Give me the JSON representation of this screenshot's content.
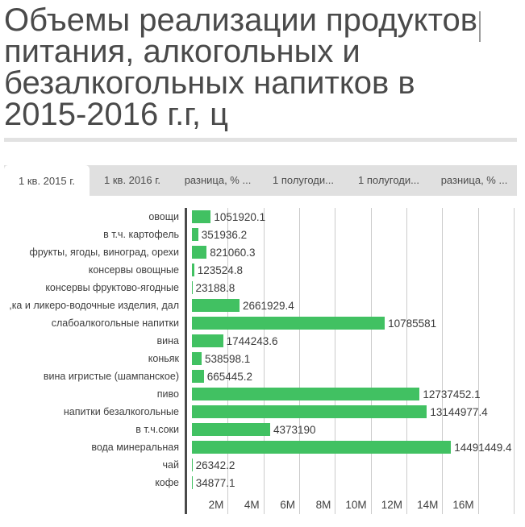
{
  "page": {
    "title": "Объемы реализации продуктов питания, алкогольных и безалкогольных напитков в 2015-2016 г.г, ц"
  },
  "tabs": [
    {
      "label": "1 кв. 2015 г.",
      "active": true
    },
    {
      "label": "1 кв. 2016 г.",
      "active": false
    },
    {
      "label": "разница, % ...",
      "active": false
    },
    {
      "label": "1 полугоди...",
      "active": false
    },
    {
      "label": "1 полугоди...",
      "active": false
    },
    {
      "label": "разница, % ...",
      "active": false
    }
  ],
  "chart_data": {
    "type": "bar",
    "orientation": "horizontal",
    "title": "Объемы реализации продуктов питания, алкогольных и безалкогольных напитков в 2015-2016 г.г, ц",
    "categories": [
      "овощи",
      "в т.ч. картофель",
      "фрукты, ягоды, виноград, орехи",
      "консервы овощные",
      "консервы фруктово-ягодные",
      ",ка и ликеро-водочные изделия, дал",
      "слабоалкогольные напитки",
      "вина",
      "коньяк",
      "вина игристые (шампанское)",
      "пиво",
      "напитки безалкогольные",
      "в т.ч.соки",
      "вода минеральная",
      "чай",
      "кофе"
    ],
    "values": [
      1051920.1,
      351936.2,
      821060.3,
      123524.8,
      23188.8,
      2661929.4,
      10785581,
      1744243.6,
      538598.1,
      665445.2,
      12737452.1,
      13144977.4,
      4373190,
      14491449.4,
      26342.2,
      34877.1
    ],
    "value_labels": [
      "1051920.1",
      "351936.2",
      "821060.3",
      "123524.8",
      "23188.8",
      "2661929.4",
      "10785581",
      "1744243.6",
      "538598.1",
      "665445.2",
      "12737452.1",
      "13144977.4",
      "4373190",
      "14491449.4",
      "26342.2",
      "34877.1"
    ],
    "x_ticks": [
      "2M",
      "4M",
      "6M",
      "8M",
      "10M",
      "12M",
      "14M",
      "16M"
    ],
    "x_max": 18000000,
    "x_gridline_count": 9,
    "grid": true,
    "legend": "none",
    "bar_color": "#41c162",
    "grid_color": "#cbcbcb",
    "axis_line_color": "#4a4a4a"
  }
}
